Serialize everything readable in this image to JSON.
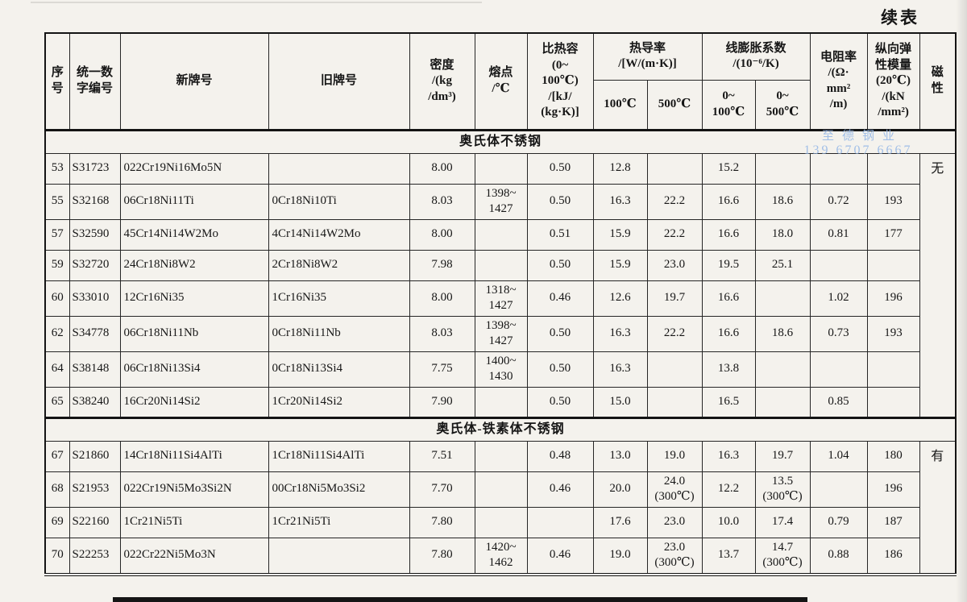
{
  "page": {
    "continued_label": "续表",
    "watermark": {
      "line1": "至德钢业",
      "line2": "139 6707 6667",
      "color": "#92b6e6"
    }
  },
  "table": {
    "headers": {
      "seq": "序\n号",
      "code": "统一数\n字编号",
      "new_grade": "新牌号",
      "old_grade": "旧牌号",
      "density": "密度\n/(kg\n/dm³)",
      "melting": "熔点\n/℃",
      "specific_heat": "比热容\n(0~\n100℃)\n/[kJ/\n(kg·K)]",
      "thermal_conductivity": "热导率\n/[W/(m·K)]",
      "tc_100": "100℃",
      "tc_500": "500℃",
      "linear_expansion": "线膨胀系数\n/(10⁻⁶/K)",
      "le_100": "0~\n100℃",
      "le_500": "0~\n500℃",
      "resistivity": "电阻率\n/(Ω·\nmm²\n/m)",
      "modulus": "纵向弹\n性模量\n(20℃)\n/(kN\n/mm²)",
      "magnetism": "磁\n性"
    },
    "sections": [
      {
        "title": "奥氏体不锈钢",
        "magnetism": "无",
        "rows": [
          {
            "seq": "53",
            "code": "S31723",
            "new_grade": "022Cr19Ni16Mo5N",
            "old_grade": "",
            "density": "8.00",
            "melting": "",
            "specific_heat": "0.50",
            "tc_100": "12.8",
            "tc_500": "",
            "le_100": "15.2",
            "le_500": "",
            "resistivity": "",
            "modulus": ""
          },
          {
            "seq": "55",
            "code": "S32168",
            "new_grade": "06Cr18Ni11Ti",
            "old_grade": "0Cr18Ni10Ti",
            "density": "8.03",
            "melting": "1398~\n1427",
            "specific_heat": "0.50",
            "tc_100": "16.3",
            "tc_500": "22.2",
            "le_100": "16.6",
            "le_500": "18.6",
            "resistivity": "0.72",
            "modulus": "193"
          },
          {
            "seq": "57",
            "code": "S32590",
            "new_grade": "45Cr14Ni14W2Mo",
            "old_grade": "4Cr14Ni14W2Mo",
            "density": "8.00",
            "melting": "",
            "specific_heat": "0.51",
            "tc_100": "15.9",
            "tc_500": "22.2",
            "le_100": "16.6",
            "le_500": "18.0",
            "resistivity": "0.81",
            "modulus": "177"
          },
          {
            "seq": "59",
            "code": "S32720",
            "new_grade": "24Cr18Ni8W2",
            "old_grade": "2Cr18Ni8W2",
            "density": "7.98",
            "melting": "",
            "specific_heat": "0.50",
            "tc_100": "15.9",
            "tc_500": "23.0",
            "le_100": "19.5",
            "le_500": "25.1",
            "resistivity": "",
            "modulus": ""
          },
          {
            "seq": "60",
            "code": "S33010",
            "new_grade": "12Cr16Ni35",
            "old_grade": "1Cr16Ni35",
            "density": "8.00",
            "melting": "1318~\n1427",
            "specific_heat": "0.46",
            "tc_100": "12.6",
            "tc_500": "19.7",
            "le_100": "16.6",
            "le_500": "",
            "resistivity": "1.02",
            "modulus": "196"
          },
          {
            "seq": "62",
            "code": "S34778",
            "new_grade": "06Cr18Ni11Nb",
            "old_grade": "0Cr18Ni11Nb",
            "density": "8.03",
            "melting": "1398~\n1427",
            "specific_heat": "0.50",
            "tc_100": "16.3",
            "tc_500": "22.2",
            "le_100": "16.6",
            "le_500": "18.6",
            "resistivity": "0.73",
            "modulus": "193"
          },
          {
            "seq": "64",
            "code": "S38148",
            "new_grade": "06Cr18Ni13Si4",
            "old_grade": "0Cr18Ni13Si4",
            "density": "7.75",
            "melting": "1400~\n1430",
            "specific_heat": "0.50",
            "tc_100": "16.3",
            "tc_500": "",
            "le_100": "13.8",
            "le_500": "",
            "resistivity": "",
            "modulus": ""
          },
          {
            "seq": "65",
            "code": "S38240",
            "new_grade": "16Cr20Ni14Si2",
            "old_grade": "1Cr20Ni14Si2",
            "density": "7.90",
            "melting": "",
            "specific_heat": "0.50",
            "tc_100": "15.0",
            "tc_500": "",
            "le_100": "16.5",
            "le_500": "",
            "resistivity": "0.85",
            "modulus": ""
          }
        ]
      },
      {
        "title": "奥氏体-铁素体不锈钢",
        "magnetism": "有",
        "rows": [
          {
            "seq": "67",
            "code": "S21860",
            "new_grade": "14Cr18Ni11Si4AlTi",
            "old_grade": "1Cr18Ni11Si4AlTi",
            "density": "7.51",
            "melting": "",
            "specific_heat": "0.48",
            "tc_100": "13.0",
            "tc_500": "19.0",
            "le_100": "16.3",
            "le_500": "19.7",
            "resistivity": "1.04",
            "modulus": "180"
          },
          {
            "seq": "68",
            "code": "S21953",
            "new_grade": "022Cr19Ni5Mo3Si2N",
            "old_grade": "00Cr18Ni5Mo3Si2",
            "density": "7.70",
            "melting": "",
            "specific_heat": "0.46",
            "tc_100": "20.0",
            "tc_500": "24.0\n(300℃)",
            "le_100": "12.2",
            "le_500": "13.5\n(300℃)",
            "resistivity": "",
            "modulus": "196"
          },
          {
            "seq": "69",
            "code": "S22160",
            "new_grade": "1Cr21Ni5Ti",
            "old_grade": "1Cr21Ni5Ti",
            "density": "7.80",
            "melting": "",
            "specific_heat": "",
            "tc_100": "17.6",
            "tc_500": "23.0",
            "le_100": "10.0",
            "le_500": "17.4",
            "resistivity": "0.79",
            "modulus": "187"
          },
          {
            "seq": "70",
            "code": "S22253",
            "new_grade": "022Cr22Ni5Mo3N",
            "old_grade": "",
            "density": "7.80",
            "melting": "1420~\n1462",
            "specific_heat": "0.46",
            "tc_100": "19.0",
            "tc_500": "23.0\n(300℃)",
            "le_100": "13.7",
            "le_500": "14.7\n(300℃)",
            "resistivity": "0.88",
            "modulus": "186"
          }
        ]
      }
    ]
  }
}
